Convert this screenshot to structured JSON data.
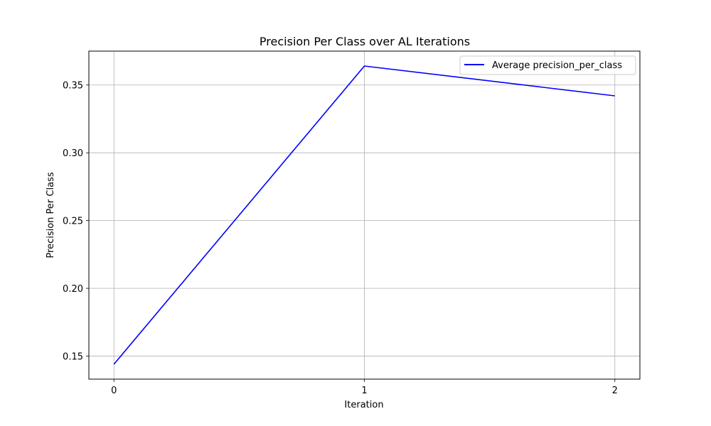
{
  "chart_data": {
    "type": "line",
    "title": "Precision Per Class over AL Iterations",
    "xlabel": "Iteration",
    "ylabel": "Precision Per Class",
    "x": [
      0,
      1,
      2
    ],
    "x_ticks": [
      "0",
      "1",
      "2"
    ],
    "y_ticks": [
      "0.15",
      "0.20",
      "0.25",
      "0.30",
      "0.35"
    ],
    "xlim": [
      -0.1,
      2.1
    ],
    "ylim": [
      0.133,
      0.375
    ],
    "grid": true,
    "legend_position": "top-right",
    "series": [
      {
        "name": "Average precision_per_class",
        "values": [
          0.144,
          0.364,
          0.342
        ],
        "color": "#0000ff"
      }
    ]
  }
}
